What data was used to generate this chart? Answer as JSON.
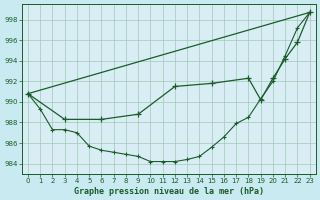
{
  "background_color": "#c8eaf0",
  "plot_bg_color": "#d8eef4",
  "grid_color": "#a0c8b8",
  "line_color": "#1a5c2a",
  "title": "Graphe pression niveau de la mer (hPa)",
  "xlim": [
    -0.5,
    23.5
  ],
  "ylim": [
    983.0,
    999.5
  ],
  "yticks": [
    984,
    986,
    988,
    990,
    992,
    994,
    996,
    998
  ],
  "xticks": [
    0,
    1,
    2,
    3,
    4,
    5,
    6,
    7,
    8,
    9,
    10,
    11,
    12,
    13,
    14,
    15,
    16,
    17,
    18,
    19,
    20,
    21,
    22,
    23
  ],
  "series1_x": [
    0,
    1,
    2,
    3,
    4,
    5,
    6,
    7,
    8,
    9,
    10,
    11,
    12,
    13,
    14,
    15,
    16,
    17,
    18,
    19,
    20,
    21,
    22,
    23
  ],
  "series1_y": [
    990.8,
    989.3,
    987.3,
    987.3,
    987.0,
    985.7,
    985.3,
    985.1,
    984.9,
    984.7,
    984.2,
    984.2,
    984.2,
    984.4,
    984.7,
    985.6,
    986.6,
    987.9,
    988.5,
    990.3,
    992.0,
    994.5,
    997.2,
    998.7
  ],
  "series2_x": [
    0,
    23
  ],
  "series2_y": [
    990.8,
    998.7
  ],
  "series3_x": [
    0,
    3,
    6,
    9,
    12,
    15,
    18,
    19,
    20,
    21,
    22,
    23
  ],
  "series3_y": [
    990.8,
    988.3,
    988.3,
    988.8,
    991.5,
    991.8,
    992.3,
    990.2,
    992.3,
    994.2,
    995.8,
    998.7
  ]
}
